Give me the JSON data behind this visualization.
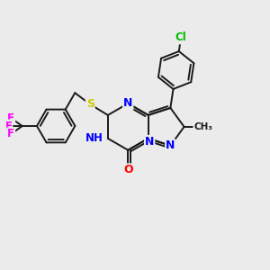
{
  "background_color": "#ebebeb",
  "bond_color": "#1a1a1a",
  "atom_colors": {
    "N": "#0000ff",
    "O": "#ff0000",
    "S": "#cccc00",
    "F": "#ff00ff",
    "Cl": "#00bb00",
    "H": "#888888",
    "C": "#1a1a1a"
  },
  "figsize": [
    3.0,
    3.0
  ],
  "dpi": 100
}
